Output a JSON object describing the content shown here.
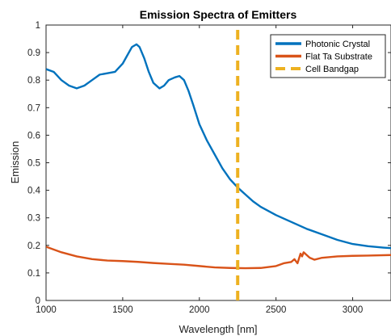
{
  "chart_data": {
    "type": "line",
    "title": "Emission Spectra of Emitters",
    "xlabel": "Wavelength [nm]",
    "ylabel": "Emission",
    "xlim": [
      1000,
      3250
    ],
    "ylim": [
      0,
      1
    ],
    "xticks": [
      1000,
      1500,
      2000,
      2500,
      3000
    ],
    "yticks": [
      0,
      0.1,
      0.2,
      0.3,
      0.4,
      0.5,
      0.6,
      0.7,
      0.8,
      0.9,
      1
    ],
    "grid": false,
    "legend_position": "top-right",
    "series": [
      {
        "name": "Photonic Crystal",
        "color": "#0072bd",
        "x": [
          1000,
          1050,
          1100,
          1150,
          1200,
          1250,
          1300,
          1350,
          1400,
          1450,
          1500,
          1530,
          1560,
          1590,
          1610,
          1640,
          1670,
          1700,
          1740,
          1770,
          1800,
          1840,
          1870,
          1900,
          1930,
          1960,
          2000,
          2050,
          2100,
          2150,
          2200,
          2250,
          2300,
          2350,
          2400,
          2500,
          2600,
          2700,
          2800,
          2900,
          3000,
          3100,
          3200,
          3250
        ],
        "y": [
          0.84,
          0.83,
          0.8,
          0.78,
          0.77,
          0.78,
          0.8,
          0.82,
          0.825,
          0.83,
          0.86,
          0.89,
          0.92,
          0.93,
          0.92,
          0.88,
          0.83,
          0.79,
          0.77,
          0.78,
          0.8,
          0.81,
          0.815,
          0.8,
          0.76,
          0.71,
          0.64,
          0.58,
          0.53,
          0.48,
          0.44,
          0.41,
          0.385,
          0.36,
          0.34,
          0.31,
          0.285,
          0.26,
          0.24,
          0.22,
          0.205,
          0.197,
          0.192,
          0.19
        ]
      },
      {
        "name": "Flat Ta Substrate",
        "color": "#d95319",
        "x": [
          1000,
          1100,
          1200,
          1300,
          1400,
          1500,
          1600,
          1700,
          1800,
          1900,
          2000,
          2100,
          2200,
          2300,
          2400,
          2500,
          2550,
          2600,
          2620,
          2640,
          2660,
          2670,
          2680,
          2700,
          2720,
          2750,
          2800,
          2900,
          3000,
          3100,
          3250
        ],
        "y": [
          0.195,
          0.175,
          0.16,
          0.15,
          0.145,
          0.143,
          0.14,
          0.136,
          0.133,
          0.13,
          0.125,
          0.12,
          0.118,
          0.117,
          0.118,
          0.125,
          0.135,
          0.14,
          0.15,
          0.135,
          0.17,
          0.16,
          0.175,
          0.165,
          0.155,
          0.148,
          0.155,
          0.16,
          0.162,
          0.163,
          0.165
        ]
      },
      {
        "name": "Cell Bandgap",
        "color": "#edb120",
        "dashed": true,
        "x": [
          2250,
          2250
        ],
        "y": [
          0,
          1
        ]
      }
    ]
  }
}
